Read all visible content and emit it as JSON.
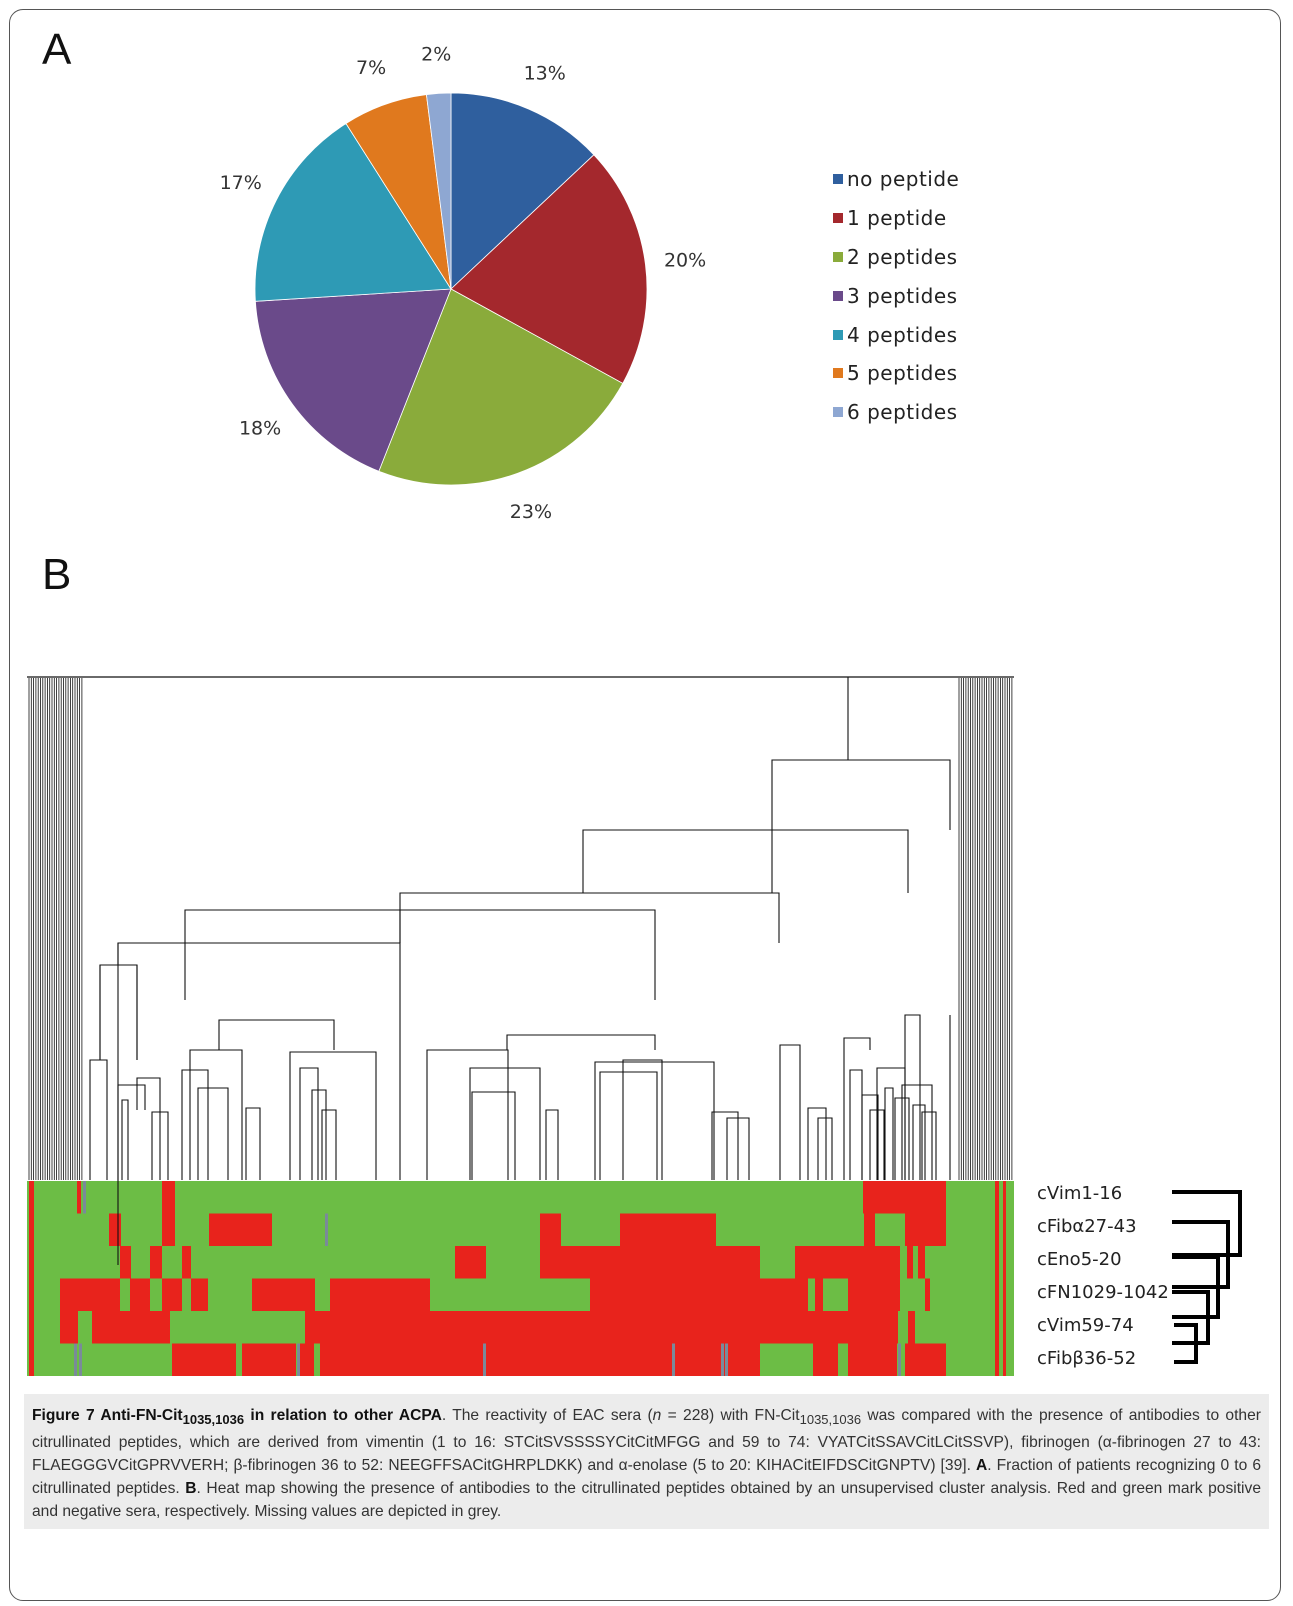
{
  "panel_a_label": "A",
  "panel_b_label": "B",
  "chart_data": [
    {
      "type": "pie",
      "title": "",
      "categories": [
        "no peptide",
        "1 peptide",
        "2 peptides",
        "3 peptides",
        "4 peptides",
        "5 peptides",
        "6 peptides"
      ],
      "values": [
        13,
        20,
        23,
        18,
        17,
        7,
        2
      ],
      "value_labels": [
        "13%",
        "20%",
        "23%",
        "18%",
        "17%",
        "7%",
        "2%"
      ],
      "colors": [
        "#2f5f9e",
        "#a4282d",
        "#8aab3b",
        "#6a4a8a",
        "#2e9ab5",
        "#e0791e",
        "#8ea7d2"
      ],
      "legend_placement": "right"
    },
    {
      "type": "heatmap",
      "title": "",
      "rows": [
        "cVim1-16",
        "cFibα27-43",
        "cEno5-20",
        "cFN1029-1042",
        "cVim59-74",
        "cFibβ36-52"
      ],
      "value_meaning": {
        "positive": "red",
        "negative": "green",
        "missing": "grey"
      },
      "colors": {
        "positive": "#e8231c",
        "negative": "#6cbd45",
        "missing": "#7a8a9a"
      },
      "dendrogram": "column clustering (top) and row clustering (right)"
    }
  ],
  "caption": {
    "title": "Figure 7 Anti-FN-Cit",
    "title_sub": "1035,1036",
    "title_tail": " in relation to other ACPA",
    "body_1": ". The reactivity of EAC sera (",
    "n_symbol": "n",
    "body_2": " = 228) with FN-Cit",
    "body_sub": "1035,1036",
    "body_3": " was compared with the presence of antibodies to other citrullinated peptides, which are derived from vimentin (1 to 16: STCitSVSSSSYCitCitMFGG and 59 to 74: VYATCitSSAVCitLCitSSVP), fibrinogen (α-fibrinogen 27 to 43: FLAEGGGVCitGPRVVERH; β-fibrinogen 36 to 52: NEEGFFSACitGHRPLDKK) and α-enolase (5 to 20: KIHACitEIFDSCitGNPTV) [39]. ",
    "a_label": "A",
    "a_text": ". Fraction of patients recognizing 0 to 6 citrullinated peptides. ",
    "b_label": "B",
    "b_text": ". Heat map showing the presence of antibodies to the citrullinated peptides obtained by an unsupervised cluster analysis. Red and green mark positive and negative sera, respectively. Missing values are depicted in grey."
  }
}
